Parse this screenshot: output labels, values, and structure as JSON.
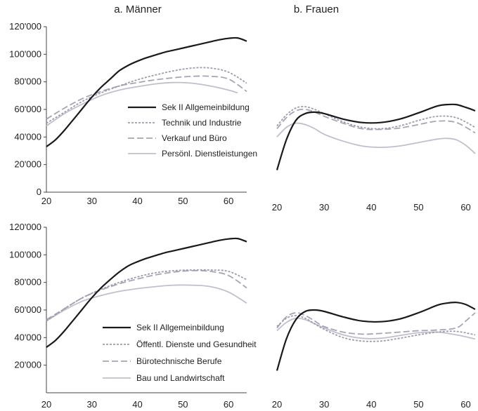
{
  "panel_titles": [
    "a.  Männer",
    "b.  Frauen"
  ],
  "chart_data": [
    {
      "type": "line",
      "panel": "a.  Männer",
      "xlim": [
        20,
        64
      ],
      "ylim": [
        0,
        120000
      ],
      "xticks": [
        20,
        30,
        40,
        50,
        60
      ],
      "yticks": [
        0,
        20000,
        40000,
        60000,
        80000,
        100000,
        120000
      ],
      "ytick_labels": [
        "0",
        "20'000",
        "40'000",
        "60'000",
        "80'000",
        "100'000",
        "120'000"
      ],
      "legend_position": "center-right",
      "series": [
        {
          "name": "Sek II Allgemeinbildung",
          "color": "#1a1a1a",
          "style": "solid",
          "x": [
            20,
            22,
            24,
            26,
            28,
            30,
            32,
            34,
            36,
            38,
            40,
            42,
            44,
            46,
            48,
            50,
            52,
            54,
            56,
            58,
            60,
            62,
            64
          ],
          "y": [
            33000,
            38000,
            45000,
            53000,
            61000,
            69000,
            76000,
            82000,
            88000,
            92000,
            95000,
            97500,
            99500,
            101500,
            103000,
            104500,
            106000,
            107500,
            109000,
            110500,
            111500,
            111800,
            109500
          ]
        },
        {
          "name": "Technik und Industrie",
          "color": "#a09cae",
          "style": "dotted",
          "x": [
            20,
            24,
            28,
            32,
            36,
            40,
            44,
            48,
            52,
            56,
            60,
            64
          ],
          "y": [
            50000,
            58000,
            66000,
            72000,
            77000,
            81500,
            85000,
            88000,
            90000,
            90000,
            87000,
            79000
          ]
        },
        {
          "name": "Verkauf und Büro",
          "color": "#a8a4b4",
          "style": "dashed",
          "x": [
            20,
            24,
            28,
            32,
            36,
            40,
            44,
            48,
            52,
            56,
            60,
            64
          ],
          "y": [
            53000,
            61000,
            68000,
            73000,
            77000,
            79500,
            81500,
            83000,
            84000,
            84000,
            82000,
            73000
          ]
        },
        {
          "name": "Persönl. Dienstleistungen",
          "color": "#c3bece",
          "style": "solid",
          "x": [
            20,
            24,
            28,
            32,
            36,
            40,
            44,
            48,
            52,
            56,
            60,
            62
          ],
          "y": [
            48000,
            57000,
            64000,
            70000,
            74000,
            76500,
            78500,
            79500,
            79000,
            77000,
            74000,
            72000
          ]
        }
      ]
    },
    {
      "type": "line",
      "panel": "b.  Frauen",
      "xlim": [
        20,
        62
      ],
      "ylim": [
        0,
        120000
      ],
      "xticks": [
        20,
        30,
        40,
        50,
        60
      ],
      "series": [
        {
          "name": "Sek II Allgemeinbildung",
          "color": "#1a1a1a",
          "style": "solid",
          "x": [
            20,
            22,
            24,
            26,
            28,
            30,
            34,
            38,
            42,
            46,
            50,
            54,
            56,
            58,
            60,
            62
          ],
          "y": [
            16000,
            38000,
            52000,
            57000,
            58000,
            57000,
            53000,
            50500,
            50500,
            53000,
            57500,
            62500,
            63500,
            63500,
            61500,
            59000
          ]
        },
        {
          "name": "Technik und Industrie",
          "color": "#a09cae",
          "style": "dotted",
          "x": [
            20,
            22,
            24,
            26,
            28,
            30,
            34,
            38,
            42,
            46,
            50,
            54,
            58,
            62
          ],
          "y": [
            48000,
            56000,
            61000,
            62000,
            60000,
            57000,
            51000,
            47000,
            46000,
            48000,
            52000,
            55000,
            54000,
            47000
          ]
        },
        {
          "name": "Verkauf und Büro",
          "color": "#a8a4b4",
          "style": "dashed",
          "x": [
            20,
            22,
            24,
            26,
            28,
            30,
            34,
            38,
            42,
            46,
            50,
            54,
            58,
            62
          ],
          "y": [
            46000,
            54000,
            59000,
            60000,
            58000,
            55000,
            50000,
            46000,
            45500,
            46500,
            49000,
            51500,
            50500,
            43000
          ]
        },
        {
          "name": "Persönl. Dienstleistungen",
          "color": "#c3bece",
          "style": "solid",
          "x": [
            20,
            22,
            24,
            26,
            28,
            30,
            34,
            38,
            42,
            46,
            50,
            54,
            56,
            58,
            60,
            62
          ],
          "y": [
            40000,
            47000,
            50000,
            49000,
            46000,
            42000,
            37000,
            33500,
            32500,
            33500,
            36000,
            38500,
            39000,
            38000,
            34000,
            28000
          ]
        }
      ]
    },
    {
      "type": "line",
      "panel": "",
      "xlim": [
        20,
        64
      ],
      "ylim": [
        0,
        120000
      ],
      "xticks": [
        20,
        30,
        40,
        50,
        60
      ],
      "yticks": [
        20000,
        40000,
        60000,
        80000,
        100000,
        120000
      ],
      "ytick_labels": [
        "20'000",
        "40'000",
        "60'000",
        "80'000",
        "100'000",
        "120'000"
      ],
      "legend_position": "lower-right",
      "series": [
        {
          "name": "Sek II Allgemeinbildung",
          "color": "#1a1a1a",
          "style": "solid",
          "x": [
            20,
            22,
            24,
            26,
            28,
            30,
            32,
            34,
            36,
            38,
            40,
            42,
            44,
            46,
            48,
            50,
            52,
            54,
            56,
            58,
            60,
            62,
            64
          ],
          "y": [
            33000,
            38000,
            45000,
            53000,
            61000,
            69000,
            76000,
            82000,
            87500,
            92000,
            95000,
            97500,
            99500,
            101500,
            103000,
            104500,
            106000,
            107500,
            109000,
            110500,
            111500,
            111800,
            109500
          ]
        },
        {
          "name": "Öffentl. Dienste und Gesundheit",
          "color": "#a09cae",
          "style": "dotted",
          "x": [
            20,
            24,
            28,
            32,
            36,
            40,
            44,
            48,
            52,
            56,
            60,
            64
          ],
          "y": [
            52000,
            61000,
            69000,
            75000,
            80000,
            84000,
            87000,
            88500,
            89000,
            89000,
            88000,
            82000
          ]
        },
        {
          "name": "Bürotechnische Berufe",
          "color": "#a8a4b4",
          "style": "dashed",
          "x": [
            20,
            24,
            28,
            32,
            36,
            40,
            44,
            48,
            52,
            56,
            60,
            64
          ],
          "y": [
            53000,
            61000,
            69000,
            74500,
            79000,
            82500,
            85500,
            87500,
            88500,
            88000,
            85000,
            76000
          ]
        },
        {
          "name": "Bau und Landwirtschaft",
          "color": "#c3bece",
          "style": "solid",
          "x": [
            20,
            24,
            28,
            32,
            36,
            40,
            44,
            48,
            52,
            56,
            60,
            64
          ],
          "y": [
            52000,
            60000,
            66500,
            70500,
            73500,
            75500,
            77000,
            78000,
            78000,
            77000,
            73000,
            65000
          ]
        }
      ]
    },
    {
      "type": "line",
      "panel": "",
      "xlim": [
        20,
        62
      ],
      "ylim": [
        0,
        120000
      ],
      "xticks": [
        20,
        30,
        40,
        50,
        60
      ],
      "series": [
        {
          "name": "Sek II Allgemeinbildung",
          "color": "#1a1a1a",
          "style": "solid",
          "x": [
            20,
            22,
            24,
            26,
            28,
            30,
            34,
            38,
            42,
            46,
            50,
            54,
            56,
            58,
            60,
            62
          ],
          "y": [
            16000,
            39000,
            53000,
            59000,
            60000,
            59000,
            55000,
            52000,
            51500,
            53500,
            58000,
            63500,
            65000,
            65500,
            64000,
            60500
          ]
        },
        {
          "name": "Öffentl. Dienste und Gesundheit",
          "color": "#a09cae",
          "style": "dotted",
          "x": [
            20,
            22,
            24,
            26,
            28,
            30,
            34,
            38,
            42,
            46,
            50,
            54,
            58,
            62
          ],
          "y": [
            48000,
            54000,
            56000,
            54000,
            50000,
            46000,
            40000,
            37500,
            37500,
            39500,
            42000,
            44000,
            44500,
            42000
          ]
        },
        {
          "name": "Bürotechnische Berufe",
          "color": "#a8a4b4",
          "style": "dashed",
          "x": [
            20,
            22,
            24,
            26,
            28,
            30,
            34,
            38,
            42,
            46,
            50,
            54,
            58,
            60,
            62
          ],
          "y": [
            47000,
            55000,
            58000,
            56000,
            52000,
            48000,
            44000,
            42500,
            43000,
            44000,
            45000,
            45500,
            47000,
            52000,
            58000
          ]
        },
        {
          "name": "Bau und Landwirtschaft",
          "color": "#c3bece",
          "style": "solid",
          "x": [
            20,
            22,
            24,
            26,
            28,
            30,
            34,
            38,
            42,
            46,
            50,
            54,
            58,
            62
          ],
          "y": [
            45000,
            51000,
            54000,
            53000,
            50000,
            47000,
            42000,
            39500,
            39500,
            41500,
            43500,
            44000,
            42000,
            39000
          ]
        }
      ]
    }
  ]
}
